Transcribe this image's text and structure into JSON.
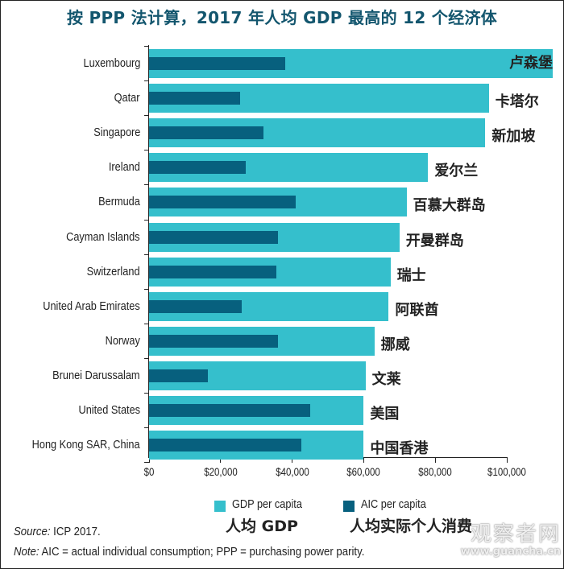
{
  "title": "按 PPP 法计算，2017 年人均 GDP 最高的 12 个经济体",
  "chart_data": {
    "type": "bar",
    "orientation": "horizontal",
    "title": "按 PPP 法计算，2017 年人均 GDP 最高的 12 个经济体",
    "xlabel": "",
    "ylabel": "",
    "xlim": [
      0,
      100000
    ],
    "x_ticks": [
      "$0",
      "$20,000",
      "$40,000",
      "$60,000",
      "$80,000",
      "$100,000"
    ],
    "grid": false,
    "legend_position": "bottom",
    "categories": [
      "Luxembourg",
      "Qatar",
      "Singapore",
      "Ireland",
      "Bermuda",
      "Cayman Islands",
      "Switzerland",
      "United Arab Emirates",
      "Norway",
      "Brunei Darussalam",
      "United States",
      "Hong Kong SAR, China"
    ],
    "categories_cn": [
      "卢森堡",
      "卡塔尔",
      "新加坡",
      "爱尔兰",
      "百慕大群岛",
      "开曼群岛",
      "瑞士",
      "阿联酋",
      "挪威",
      "文莱",
      "美国",
      "中国香港"
    ],
    "series": [
      {
        "name": "GDP per capita",
        "name_cn": "人均 GDP",
        "color": "#35bfcc",
        "values": [
          113000,
          95000,
          94000,
          78000,
          72000,
          70000,
          67500,
          67000,
          63000,
          60500,
          60000,
          60000
        ]
      },
      {
        "name": "AIC per capita",
        "name_cn": "人均实际个人消费",
        "color": "#07607e",
        "values": [
          38000,
          25500,
          32000,
          27000,
          41000,
          36000,
          35500,
          26000,
          36000,
          16500,
          45000,
          42500
        ]
      }
    ]
  },
  "legend": {
    "items": [
      {
        "label": "GDP per capita",
        "label_cn": "人均 GDP",
        "color": "#35bfcc"
      },
      {
        "label": "AIC per capita",
        "label_cn": "人均实际个人消费",
        "color": "#07607e"
      }
    ]
  },
  "footnotes": {
    "source_label": "Source:",
    "source_text": " ICP 2017.",
    "note_label": "Note:",
    "note_text": " AIC = actual individual consumption; PPP = purchasing power parity."
  },
  "watermark": {
    "cn": "观察者网",
    "url": "www.guancha.cn"
  }
}
